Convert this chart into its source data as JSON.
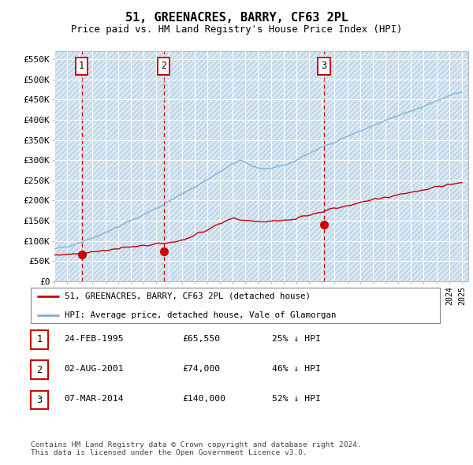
{
  "title": "51, GREENACRES, BARRY, CF63 2PL",
  "subtitle": "Price paid vs. HM Land Registry's House Price Index (HPI)",
  "ylabel_ticks": [
    "£0",
    "£50K",
    "£100K",
    "£150K",
    "£200K",
    "£250K",
    "£300K",
    "£350K",
    "£400K",
    "£450K",
    "£500K",
    "£550K"
  ],
  "ytick_values": [
    0,
    50000,
    100000,
    150000,
    200000,
    250000,
    300000,
    350000,
    400000,
    450000,
    500000,
    550000
  ],
  "xmin": 1993.0,
  "xmax": 2025.5,
  "ymin": 0,
  "ymax": 570000,
  "sale_dates": [
    1995.14,
    2001.58,
    2014.18
  ],
  "sale_prices": [
    65550,
    74000,
    140000
  ],
  "sale_labels": [
    "1",
    "2",
    "3"
  ],
  "hpi_color": "#7ab0d4",
  "sale_color": "#cc0000",
  "vline_color": "#cc0000",
  "legend_sale_label": "51, GREENACRES, BARRY, CF63 2PL (detached house)",
  "legend_hpi_label": "HPI: Average price, detached house, Vale of Glamorgan",
  "table_rows": [
    {
      "num": "1",
      "date": "24-FEB-1995",
      "price": "£65,550",
      "pct": "25% ↓ HPI"
    },
    {
      "num": "2",
      "date": "02-AUG-2001",
      "price": "£74,000",
      "pct": "46% ↓ HPI"
    },
    {
      "num": "3",
      "date": "07-MAR-2014",
      "price": "£140,000",
      "pct": "52% ↓ HPI"
    }
  ],
  "footnote": "Contains HM Land Registry data © Crown copyright and database right 2024.\nThis data is licensed under the Open Government Licence v3.0.",
  "hatch_facecolor": "#d8e8f4",
  "hatch_edgecolor": "#b8cfe0",
  "grid_color": "#ffffff",
  "background_color": "#ffffff"
}
